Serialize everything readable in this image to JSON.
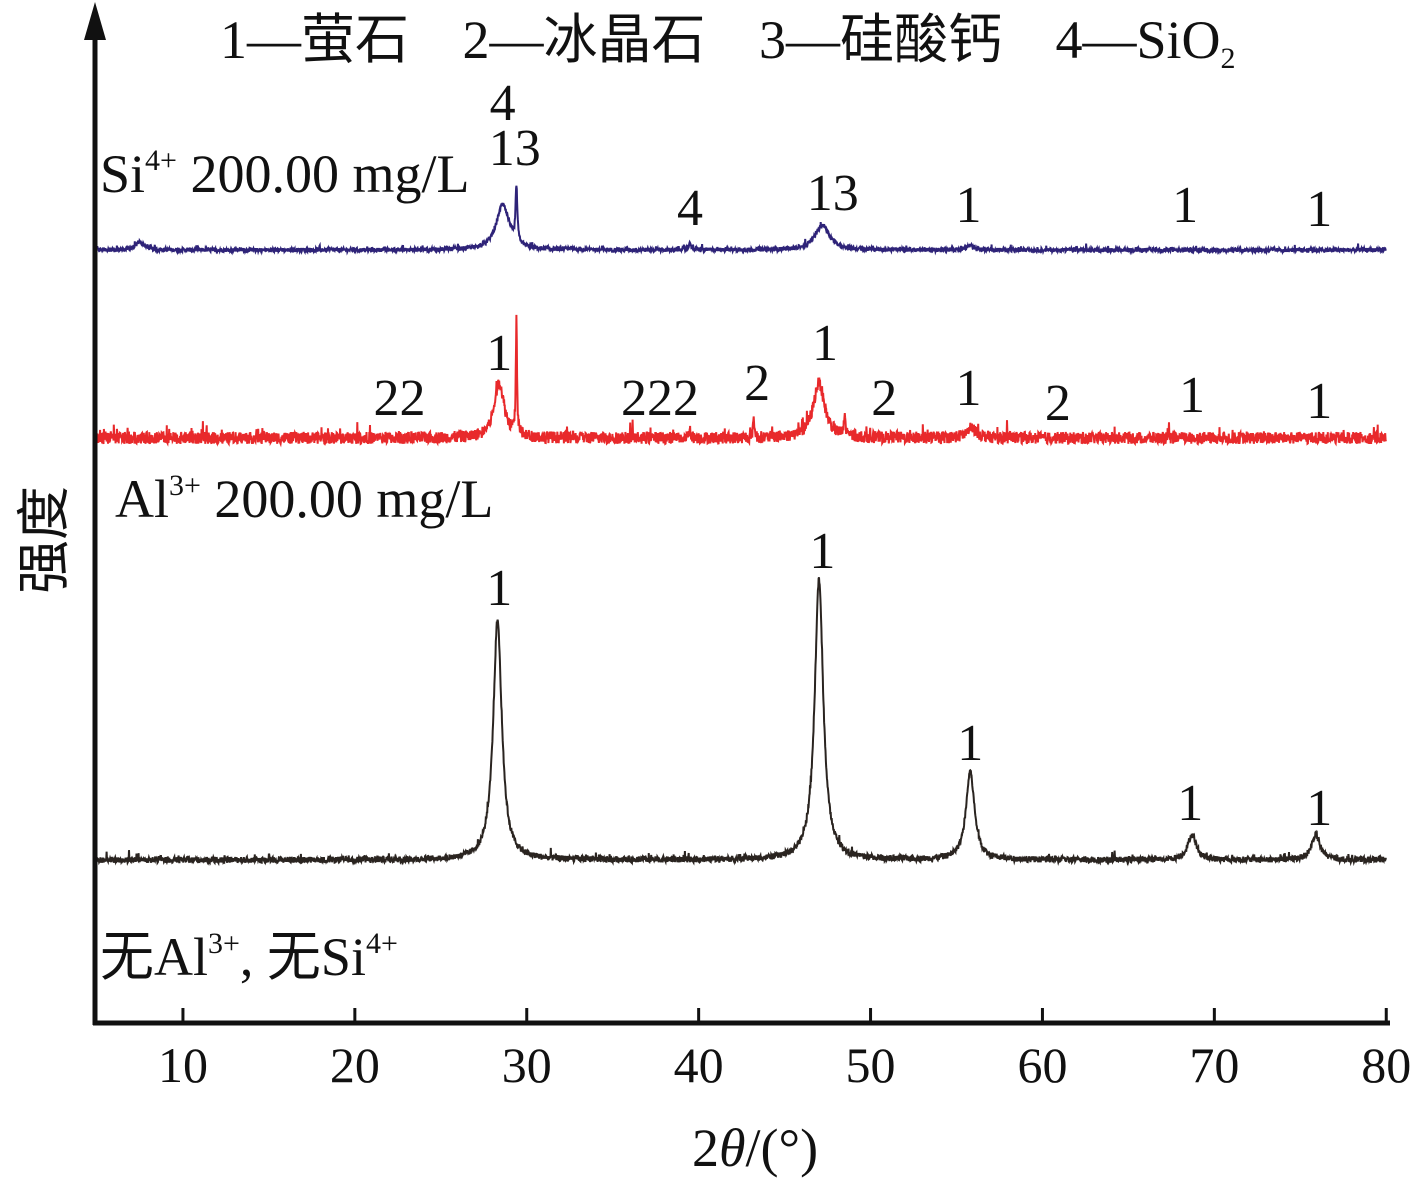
{
  "chart_data": {
    "type": "line",
    "title": "",
    "xlabel_parts": [
      "2",
      "θ",
      "/(°)"
    ],
    "ylabel": "强度",
    "xlim": [
      5,
      80
    ],
    "ylim": [
      0,
      1013
    ],
    "xticks": [
      10,
      20,
      30,
      40,
      50,
      60,
      70,
      80
    ],
    "xtick_labels": [
      "10",
      "20",
      "30",
      "40",
      "50",
      "60",
      "70",
      "80"
    ],
    "grid": false,
    "legend": {
      "placement": "top",
      "items": [
        {
          "num": "1",
          "sep": "—",
          "name": "萤石"
        },
        {
          "num": "2",
          "sep": "—",
          "name": "冰晶石"
        },
        {
          "num": "3",
          "sep": "—",
          "name": "硅酸钙"
        },
        {
          "num": "4",
          "sep": "—",
          "name": "SiO",
          "sub": "2"
        }
      ]
    },
    "series": [
      {
        "name": "Si4+ 200.00 mg/L",
        "label": {
          "a": "Si",
          "sup": "4+",
          "b": " 200.00 mg/L"
        },
        "color": "#2e2378",
        "baseline": 773,
        "noise": 4,
        "peaks": [
          [
            7.5,
            8,
            0.3
          ],
          [
            28.6,
            45,
            0.45
          ],
          [
            29.4,
            55,
            0.06
          ],
          [
            39.5,
            6,
            0.1
          ],
          [
            47.2,
            25,
            0.5
          ],
          [
            55.8,
            4,
            0.3
          ]
        ]
      },
      {
        "name": "Al3+ 200.00 mg/L",
        "label": {
          "a": "Al",
          "sup": "3+",
          "b": " 200.00 mg/L"
        },
        "color": "#e8292b",
        "baseline": 585,
        "noise": 12,
        "peaks": [
          [
            28.4,
            55,
            0.35
          ],
          [
            29.4,
            115,
            0.04
          ],
          [
            43.2,
            25,
            0.04
          ],
          [
            47.0,
            55,
            0.4
          ],
          [
            48.5,
            20,
            0.05
          ],
          [
            55.9,
            10,
            0.35
          ],
          [
            39.5,
            10,
            0.05
          ]
        ]
      },
      {
        "name": "无Al3+, 无Si4+",
        "label": {
          "a": "无Al",
          "sup": "3+",
          "b": ", 无Si",
          "sup2": "4+"
        },
        "color": "#2a2420",
        "baseline": 163,
        "noise": 6,
        "peaks": [
          [
            28.3,
            240,
            0.3
          ],
          [
            47.0,
            280,
            0.3
          ],
          [
            55.8,
            88,
            0.3
          ],
          [
            68.7,
            25,
            0.3
          ],
          [
            75.9,
            25,
            0.3
          ]
        ]
      }
    ],
    "annotations": [
      {
        "text": "4",
        "x": 28.6,
        "y": 903
      },
      {
        "text": "13",
        "x": 29.3,
        "y": 858
      },
      {
        "text": "4",
        "x": 39.5,
        "y": 798
      },
      {
        "text": "13",
        "x": 47.8,
        "y": 813
      },
      {
        "text": "1",
        "x": 55.7,
        "y": 801
      },
      {
        "text": "1",
        "x": 68.3,
        "y": 801
      },
      {
        "text": "1",
        "x": 76.1,
        "y": 797
      },
      {
        "text": "22",
        "x": 22.6,
        "y": 608
      },
      {
        "text": "1",
        "x": 28.4,
        "y": 653
      },
      {
        "text": "222",
        "x": 37.75,
        "y": 608
      },
      {
        "text": "2",
        "x": 43.4,
        "y": 623
      },
      {
        "text": "1",
        "x": 47.35,
        "y": 663
      },
      {
        "text": "2",
        "x": 50.8,
        "y": 608
      },
      {
        "text": "1",
        "x": 55.7,
        "y": 618
      },
      {
        "text": "2",
        "x": 60.9,
        "y": 603
      },
      {
        "text": "1",
        "x": 68.7,
        "y": 611
      },
      {
        "text": "1",
        "x": 76.1,
        "y": 605
      },
      {
        "text": "1",
        "x": 28.4,
        "y": 418
      },
      {
        "text": "1",
        "x": 47.2,
        "y": 455
      },
      {
        "text": "1",
        "x": 55.8,
        "y": 263
      },
      {
        "text": "1",
        "x": 68.6,
        "y": 203
      },
      {
        "text": "1",
        "x": 76.1,
        "y": 198
      }
    ]
  }
}
